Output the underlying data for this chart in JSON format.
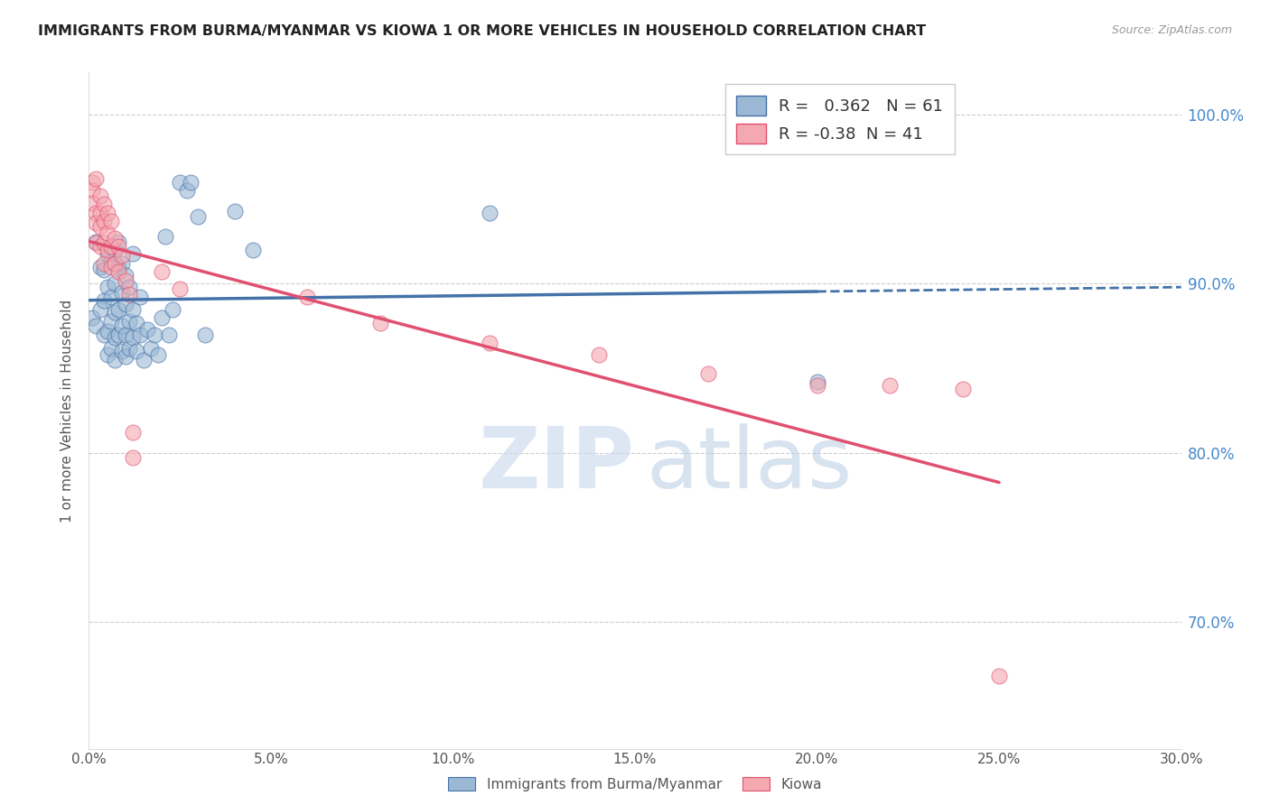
{
  "title": "IMMIGRANTS FROM BURMA/MYANMAR VS KIOWA 1 OR MORE VEHICLES IN HOUSEHOLD CORRELATION CHART",
  "source": "Source: ZipAtlas.com",
  "ylabel": "1 or more Vehicles in Household",
  "legend1_label": "Immigrants from Burma/Myanmar",
  "legend2_label": "Kiowa",
  "r_blue": 0.362,
  "n_blue": 61,
  "r_pink": -0.38,
  "n_pink": 41,
  "blue_color": "#9bb8d4",
  "pink_color": "#f4a8b0",
  "blue_line_color": "#4472a8",
  "pink_line_color": "#e05070",
  "blue_dots": [
    [
      0.001,
      0.88
    ],
    [
      0.002,
      0.875
    ],
    [
      0.002,
      0.925
    ],
    [
      0.003,
      0.885
    ],
    [
      0.003,
      0.91
    ],
    [
      0.004,
      0.87
    ],
    [
      0.004,
      0.89
    ],
    [
      0.004,
      0.908
    ],
    [
      0.005,
      0.858
    ],
    [
      0.005,
      0.872
    ],
    [
      0.005,
      0.898
    ],
    [
      0.005,
      0.918
    ],
    [
      0.006,
      0.862
    ],
    [
      0.006,
      0.878
    ],
    [
      0.006,
      0.892
    ],
    [
      0.006,
      0.913
    ],
    [
      0.007,
      0.855
    ],
    [
      0.007,
      0.868
    ],
    [
      0.007,
      0.883
    ],
    [
      0.007,
      0.9
    ],
    [
      0.007,
      0.92
    ],
    [
      0.008,
      0.87
    ],
    [
      0.008,
      0.885
    ],
    [
      0.008,
      0.91
    ],
    [
      0.008,
      0.925
    ],
    [
      0.009,
      0.86
    ],
    [
      0.009,
      0.875
    ],
    [
      0.009,
      0.895
    ],
    [
      0.009,
      0.912
    ],
    [
      0.01,
      0.857
    ],
    [
      0.01,
      0.87
    ],
    [
      0.01,
      0.888
    ],
    [
      0.01,
      0.905
    ],
    [
      0.011,
      0.862
    ],
    [
      0.011,
      0.878
    ],
    [
      0.011,
      0.898
    ],
    [
      0.012,
      0.868
    ],
    [
      0.012,
      0.885
    ],
    [
      0.012,
      0.918
    ],
    [
      0.013,
      0.86
    ],
    [
      0.013,
      0.877
    ],
    [
      0.014,
      0.87
    ],
    [
      0.014,
      0.892
    ],
    [
      0.015,
      0.855
    ],
    [
      0.016,
      0.873
    ],
    [
      0.017,
      0.862
    ],
    [
      0.018,
      0.87
    ],
    [
      0.019,
      0.858
    ],
    [
      0.02,
      0.88
    ],
    [
      0.021,
      0.928
    ],
    [
      0.022,
      0.87
    ],
    [
      0.023,
      0.885
    ],
    [
      0.025,
      0.96
    ],
    [
      0.027,
      0.955
    ],
    [
      0.028,
      0.96
    ],
    [
      0.03,
      0.94
    ],
    [
      0.032,
      0.87
    ],
    [
      0.04,
      0.943
    ],
    [
      0.045,
      0.92
    ],
    [
      0.11,
      0.942
    ],
    [
      0.2,
      0.842
    ]
  ],
  "pink_dots": [
    [
      0.001,
      0.96
    ],
    [
      0.001,
      0.955
    ],
    [
      0.001,
      0.948
    ],
    [
      0.002,
      0.962
    ],
    [
      0.002,
      0.942
    ],
    [
      0.002,
      0.936
    ],
    [
      0.002,
      0.924
    ],
    [
      0.003,
      0.952
    ],
    [
      0.003,
      0.942
    ],
    [
      0.003,
      0.934
    ],
    [
      0.003,
      0.922
    ],
    [
      0.004,
      0.947
    ],
    [
      0.004,
      0.937
    ],
    [
      0.004,
      0.924
    ],
    [
      0.004,
      0.912
    ],
    [
      0.005,
      0.942
    ],
    [
      0.005,
      0.93
    ],
    [
      0.005,
      0.92
    ],
    [
      0.006,
      0.937
    ],
    [
      0.006,
      0.922
    ],
    [
      0.006,
      0.91
    ],
    [
      0.007,
      0.927
    ],
    [
      0.007,
      0.912
    ],
    [
      0.008,
      0.922
    ],
    [
      0.008,
      0.907
    ],
    [
      0.009,
      0.917
    ],
    [
      0.01,
      0.902
    ],
    [
      0.011,
      0.894
    ],
    [
      0.012,
      0.812
    ],
    [
      0.012,
      0.797
    ],
    [
      0.02,
      0.907
    ],
    [
      0.025,
      0.897
    ],
    [
      0.06,
      0.892
    ],
    [
      0.08,
      0.877
    ],
    [
      0.11,
      0.865
    ],
    [
      0.14,
      0.858
    ],
    [
      0.17,
      0.847
    ],
    [
      0.2,
      0.84
    ],
    [
      0.22,
      0.84
    ],
    [
      0.24,
      0.838
    ],
    [
      0.25,
      0.668
    ]
  ],
  "xmin": 0.0,
  "xmax": 0.3,
  "ymin": 0.625,
  "ymax": 1.025,
  "ytick_positions": [
    1.0,
    0.9,
    0.8,
    0.7
  ],
  "ytick_labels": [
    "100.0%",
    "90.0%",
    "80.0%",
    "70.0%"
  ],
  "xtick_positions": [
    0.0,
    0.05,
    0.1,
    0.15,
    0.2,
    0.25,
    0.3
  ],
  "xtick_labels": [
    "0.0%",
    "5.0%",
    "10.0%",
    "15.0%",
    "20.0%",
    "25.0%",
    "30.0%"
  ],
  "grid_color": "#cccccc"
}
